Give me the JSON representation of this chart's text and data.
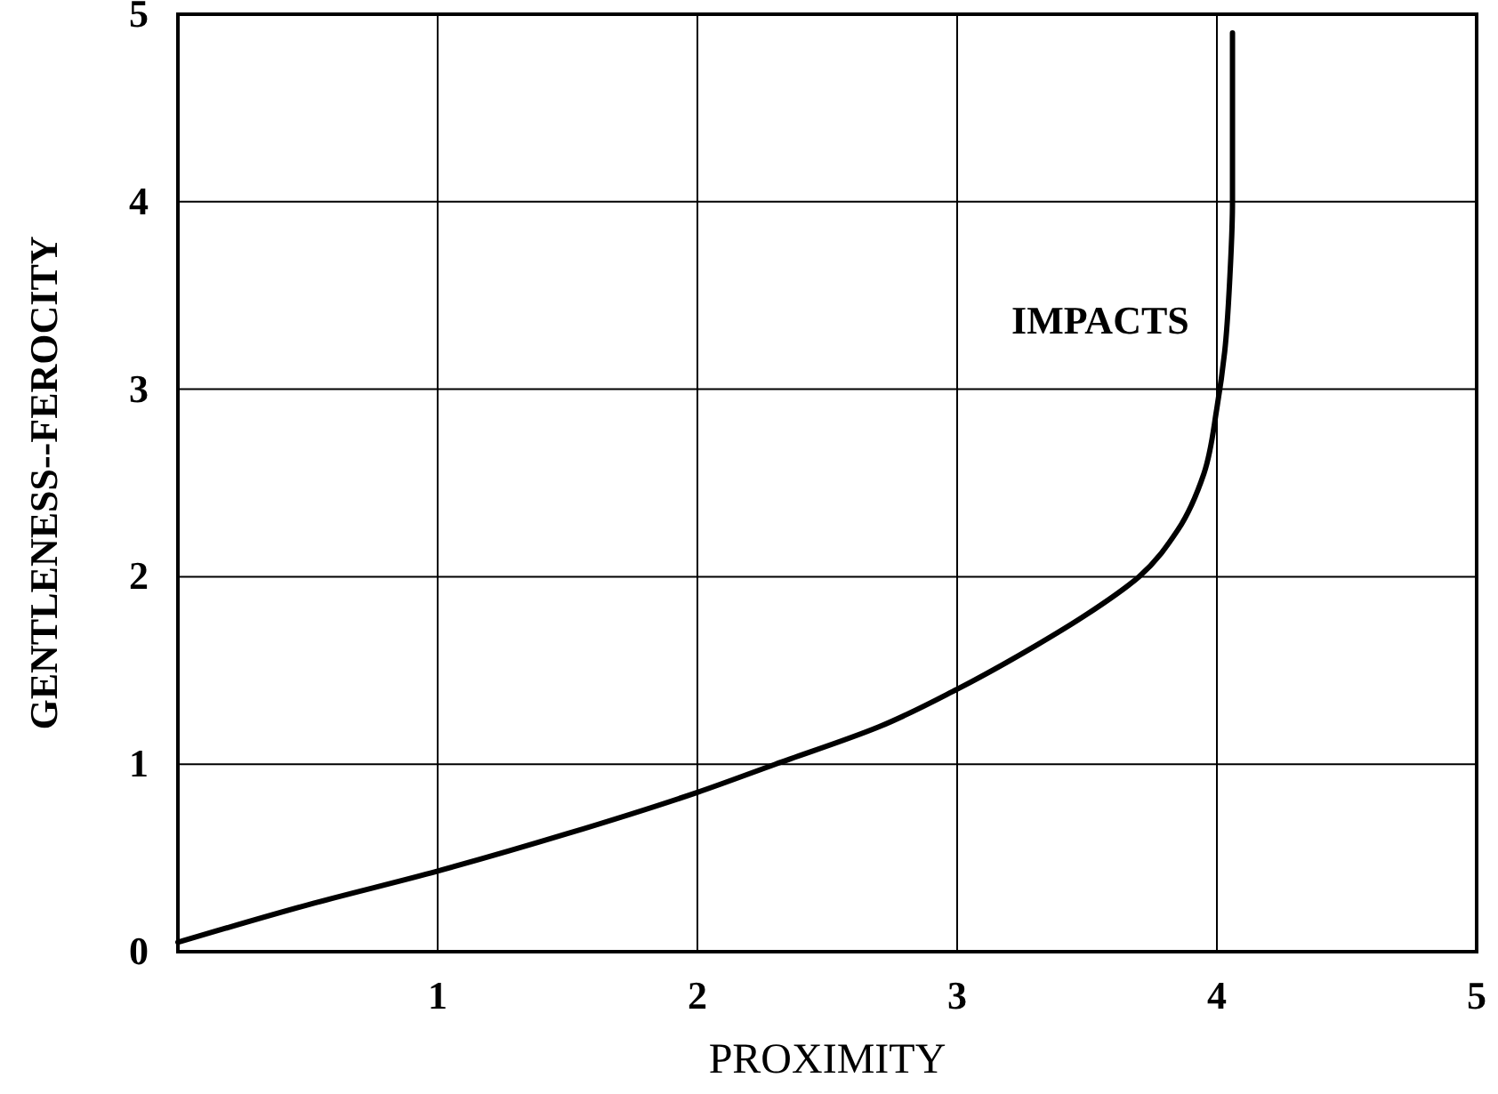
{
  "chart_data": {
    "type": "line",
    "xlabel": "PROXIMITY",
    "ylabel": "GENTLENESS--FEROCITY",
    "xlim": [
      0,
      5
    ],
    "ylim": [
      0,
      5
    ],
    "xticks": [
      {
        "value": 0,
        "label": null
      },
      1,
      2,
      3,
      4,
      5
    ],
    "yticks": [
      0,
      1,
      2,
      3,
      4,
      5
    ],
    "grid": true,
    "marker": "none",
    "line_style": "solid",
    "series": [
      {
        "name": "IMPACTS",
        "color": "#000000",
        "x": [
          0,
          0.5,
          1,
          1.5,
          2,
          2.3,
          2.7,
          3,
          3.3,
          3.5,
          3.7,
          3.85,
          3.95,
          4.0,
          4.03,
          4.05,
          4.06,
          4.06,
          4.06
        ],
        "values": [
          0.05,
          0.25,
          0.43,
          0.63,
          0.85,
          1.0,
          1.2,
          1.4,
          1.63,
          1.8,
          2.0,
          2.25,
          2.55,
          2.9,
          3.2,
          3.6,
          4.0,
          4.5,
          4.9
        ]
      }
    ]
  }
}
